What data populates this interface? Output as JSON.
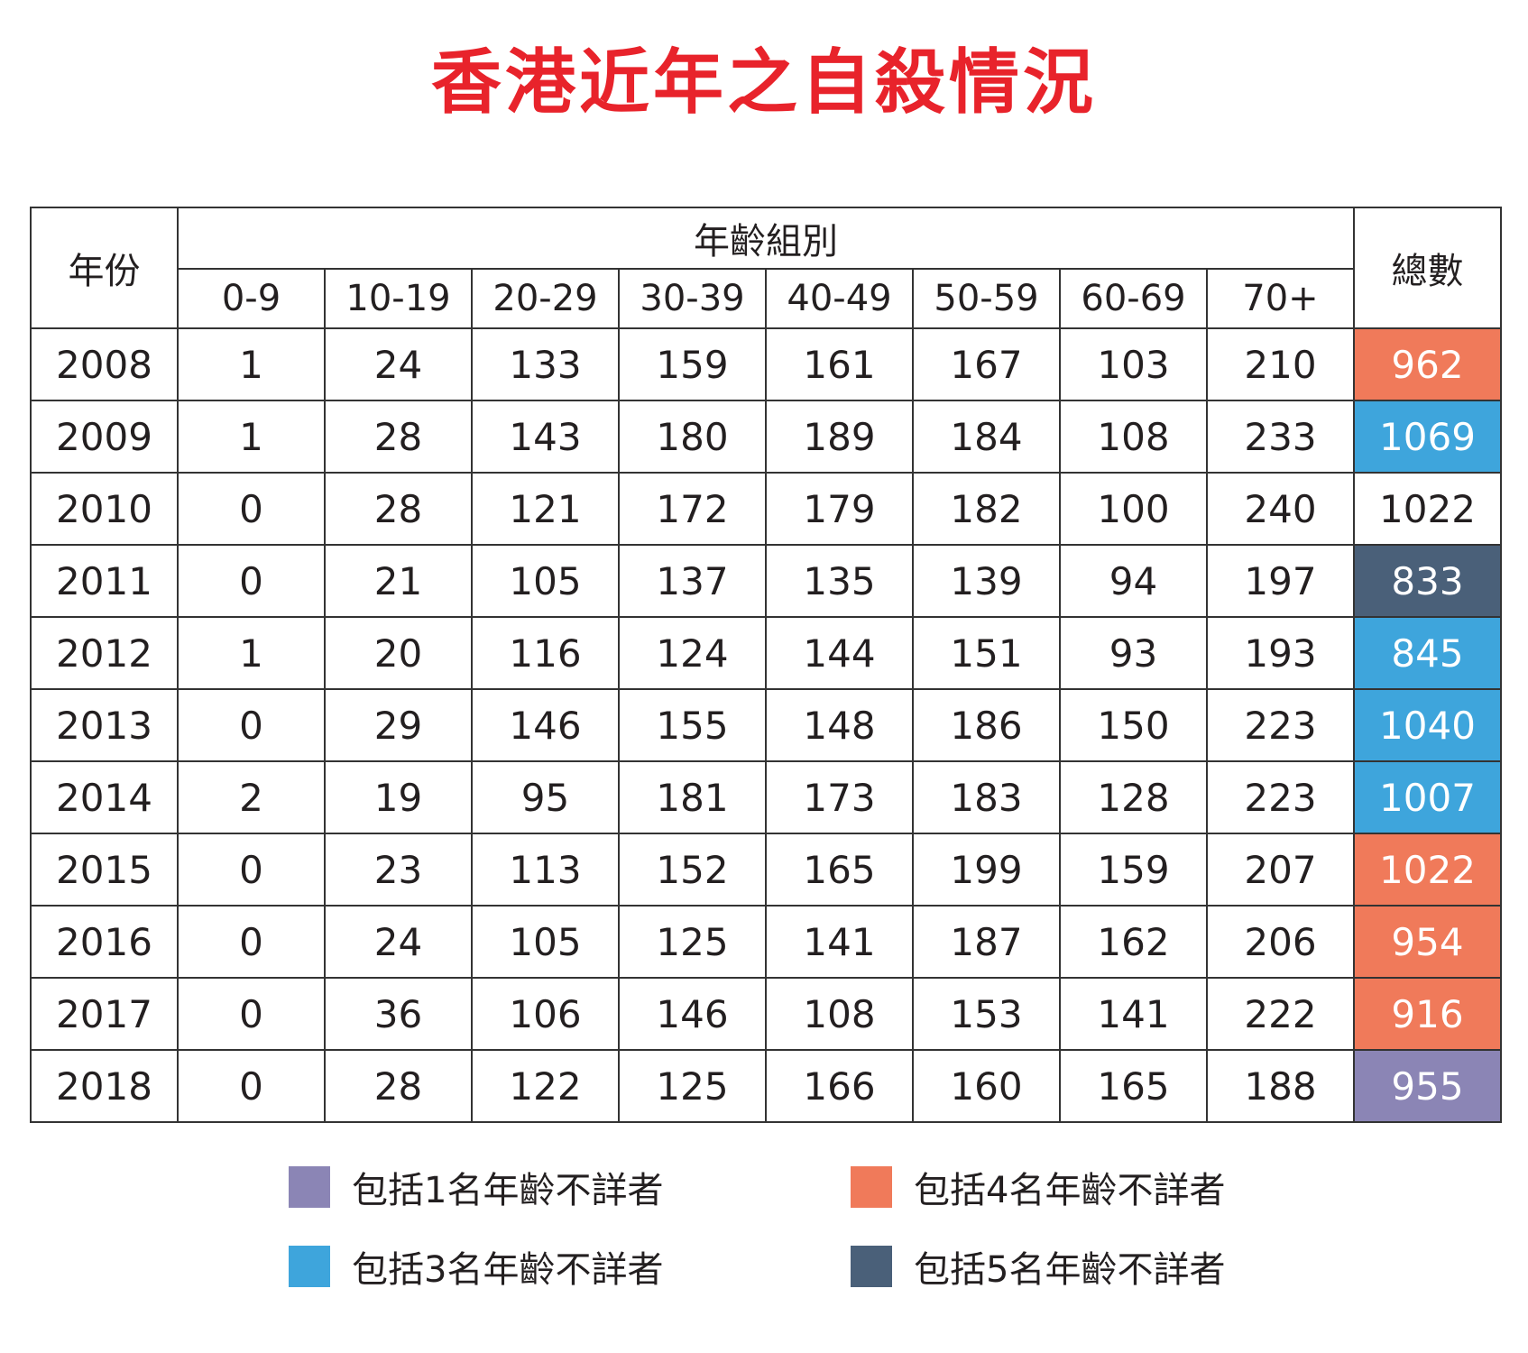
{
  "title": "香港近年之自殺情況",
  "chart_data": {
    "type": "table",
    "title": "香港近年之自殺情況",
    "header": {
      "year_label": "年份",
      "group_label": "年齡組別",
      "total_label": "總數",
      "age_groups": [
        "0-9",
        "10-19",
        "20-29",
        "30-39",
        "40-49",
        "50-59",
        "60-69",
        "70+"
      ]
    },
    "rows": [
      {
        "year": "2008",
        "values": [
          1,
          24,
          133,
          159,
          161,
          167,
          103,
          210
        ],
        "total": 962,
        "note": "4"
      },
      {
        "year": "2009",
        "values": [
          1,
          28,
          143,
          180,
          189,
          184,
          108,
          233
        ],
        "total": 1069,
        "note": "3"
      },
      {
        "year": "2010",
        "values": [
          0,
          28,
          121,
          172,
          179,
          182,
          100,
          240
        ],
        "total": 1022,
        "note": ""
      },
      {
        "year": "2011",
        "values": [
          0,
          21,
          105,
          137,
          135,
          139,
          94,
          197
        ],
        "total": 833,
        "note": "5"
      },
      {
        "year": "2012",
        "values": [
          1,
          20,
          116,
          124,
          144,
          151,
          93,
          193
        ],
        "total": 845,
        "note": "3"
      },
      {
        "year": "2013",
        "values": [
          0,
          29,
          146,
          155,
          148,
          186,
          150,
          223
        ],
        "total": 1040,
        "note": "3"
      },
      {
        "year": "2014",
        "values": [
          2,
          19,
          95,
          181,
          173,
          183,
          128,
          223
        ],
        "total": 1007,
        "note": "3"
      },
      {
        "year": "2015",
        "values": [
          0,
          23,
          113,
          152,
          165,
          199,
          159,
          207
        ],
        "total": 1022,
        "note": "4"
      },
      {
        "year": "2016",
        "values": [
          0,
          24,
          105,
          125,
          141,
          187,
          162,
          206
        ],
        "total": 954,
        "note": "4"
      },
      {
        "year": "2017",
        "values": [
          0,
          36,
          106,
          146,
          108,
          153,
          141,
          222
        ],
        "total": 916,
        "note": "4"
      },
      {
        "year": "2018",
        "values": [
          0,
          28,
          122,
          125,
          166,
          160,
          165,
          188
        ],
        "total": 955,
        "note": "1"
      }
    ]
  },
  "legend": [
    {
      "key": "1",
      "label": "包括1名年齡不詳者",
      "color": "#8b85b5"
    },
    {
      "key": "4",
      "label": "包括4名年齡不詳者",
      "color": "#f07a5a"
    },
    {
      "key": "3",
      "label": "包括3名年齡不詳者",
      "color": "#3ea5dc"
    },
    {
      "key": "5",
      "label": "包括5名年齡不詳者",
      "color": "#4a6079"
    }
  ]
}
